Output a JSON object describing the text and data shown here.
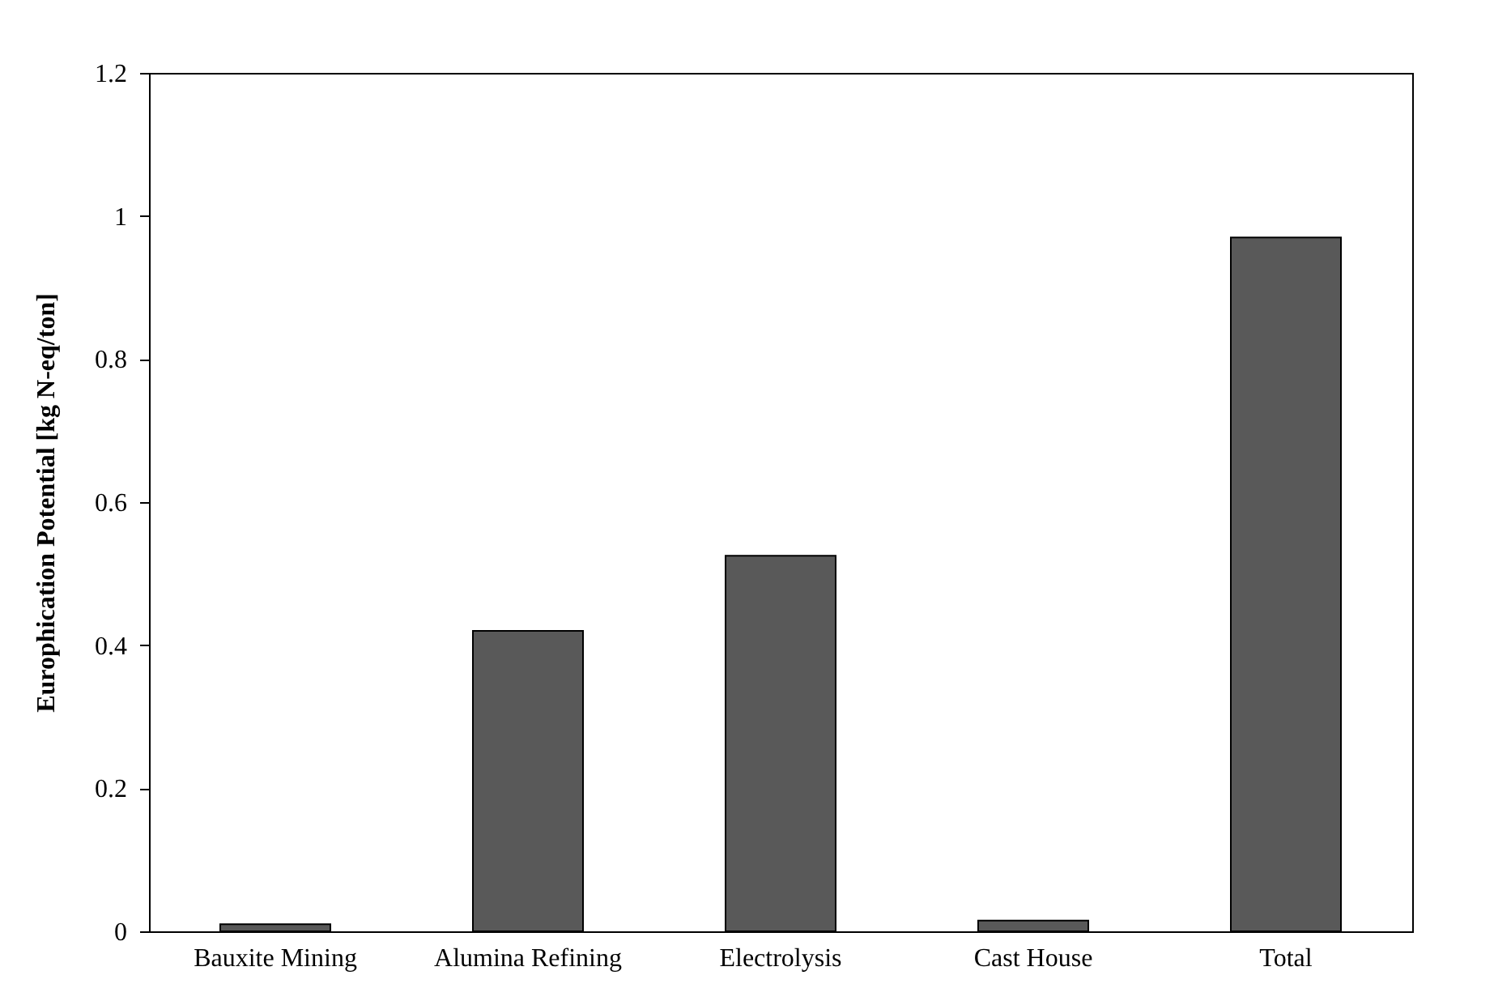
{
  "chart_data": {
    "type": "bar",
    "ylabel": "Europhication Potential [kg N-eq/ton]",
    "categories": [
      "Bauxite Mining",
      "Alumina Refining",
      "Electrolysis",
      "Cast House",
      "Total"
    ],
    "values": [
      0.01,
      0.42,
      0.525,
      0.015,
      0.97
    ],
    "color": "#595959",
    "ylim": [
      0,
      1.2
    ],
    "yticks": [
      0,
      0.2,
      0.4,
      0.6,
      0.8,
      1,
      1.2
    ],
    "grid": false
  }
}
